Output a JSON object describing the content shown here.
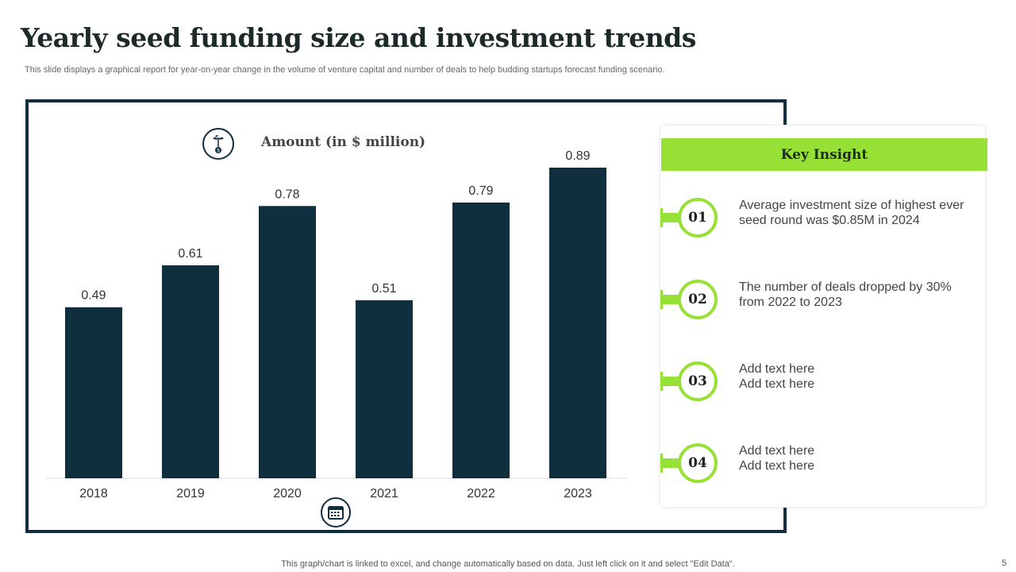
{
  "title": "Yearly seed funding size and investment trends",
  "subtitle": "This slide displays a graphical report for year-on-year change in the volume of venture capital and number of deals to help budding startups forecast funding scenario.",
  "chart_data": {
    "type": "bar",
    "title": "Amount (in $ million)",
    "categories": [
      "2018",
      "2019",
      "2020",
      "2021",
      "2022",
      "2023"
    ],
    "values": [
      0.49,
      0.61,
      0.78,
      0.51,
      0.79,
      0.89
    ],
    "value_labels": [
      "0.49",
      "0.61",
      "0.78",
      "0.51",
      "0.79",
      "0.89"
    ],
    "bar_color": "#0f2f3f",
    "grid": false,
    "ylim": [
      0,
      0.89
    ]
  },
  "icons": {
    "title": "seedling-money-icon",
    "xaxis": "calendar-icon"
  },
  "insight": {
    "heading": "Key Insight",
    "accent": "#97e036",
    "items": [
      {
        "num": "01",
        "text": "Average investment size of highest ever\nseed round was $0.85M in 2024"
      },
      {
        "num": "02",
        "text": "The number of deals dropped by 30%\nfrom 2022 to 2023"
      },
      {
        "num": "03",
        "text": "Add text here\nAdd text here"
      },
      {
        "num": "04",
        "text": "Add text here\nAdd text here"
      }
    ]
  },
  "footer": "This graph/chart is linked to excel,  and change automatically based on data. Just left click on it and select \"Edit Data\".",
  "page_number": "5"
}
